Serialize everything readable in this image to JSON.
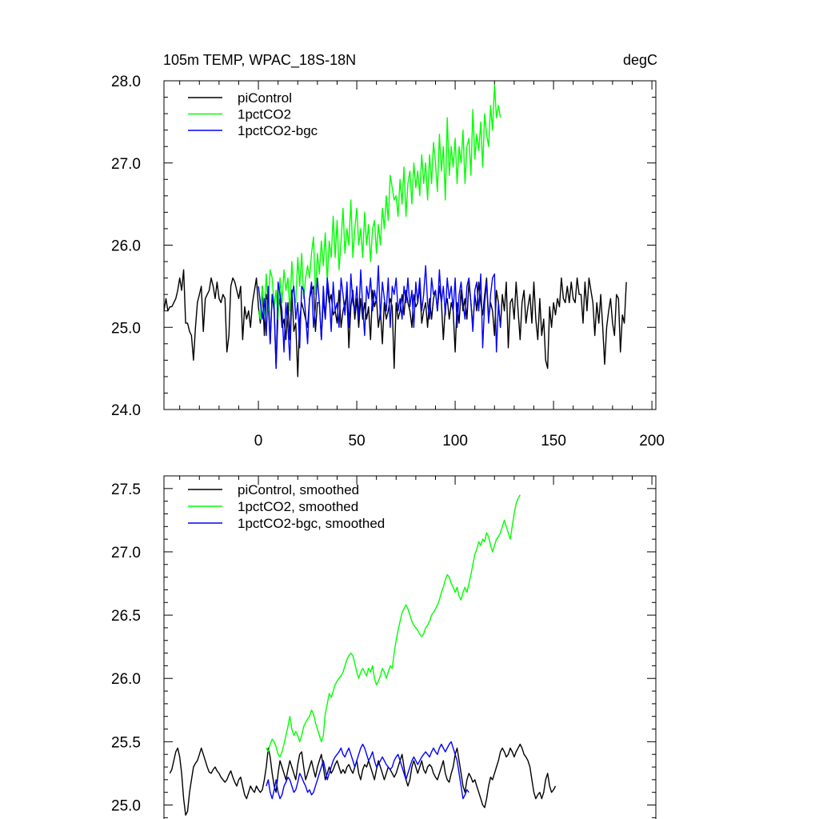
{
  "chart_data": [
    {
      "type": "line",
      "title_left": "105m TEMP, WPAC_18S-18N",
      "title_right": "degC",
      "xlim": [
        -48,
        202
      ],
      "ylim": [
        24.0,
        28.0
      ],
      "xticks": [
        0,
        50,
        100,
        150,
        200
      ],
      "xtick_labels": [
        "0",
        "50",
        "100",
        "150",
        "200"
      ],
      "yticks": [
        24.0,
        25.0,
        26.0,
        27.0,
        28.0
      ],
      "ytick_labels": [
        "24.0",
        "25.0",
        "26.0",
        "27.0",
        "28.0"
      ],
      "series": [
        {
          "name": "piControl",
          "color": "#000000",
          "x0": -48,
          "values": [
            25.2,
            25.35,
            25.2,
            25.25,
            25.25,
            25.3,
            25.35,
            25.45,
            25.6,
            25.45,
            25.7,
            25.05,
            25.05,
            24.95,
            24.9,
            24.6,
            25.0,
            25.3,
            25.4,
            25.5,
            24.95,
            25.35,
            25.4,
            25.45,
            25.6,
            25.5,
            25.35,
            25.55,
            25.35,
            25.3,
            25.4,
            25.35,
            24.7,
            24.9,
            25.5,
            25.6,
            25.55,
            25.45,
            25.35,
            25.5,
            24.85,
            25.25,
            25.1,
            25.2,
            25.0,
            25.3,
            25.45,
            25.6,
            25.25,
            25.05,
            25.5,
            24.9,
            25.4,
            25.3,
            24.8,
            25.4,
            25.2,
            24.5,
            25.2,
            25.35,
            25.0,
            25.1,
            24.85,
            25.3,
            24.85,
            25.45,
            24.95,
            25.05,
            24.4,
            25.1,
            25.3,
            25.2,
            25.1,
            25.0,
            25.35,
            25.45,
            25.5,
            24.95,
            25.3,
            25.3,
            24.85,
            25.35,
            25.1,
            25.5,
            25.3,
            25.4,
            25.15,
            25.2,
            25.05,
            25.45,
            25.0,
            25.2,
            25.3,
            25.4,
            24.75,
            25.25,
            25.45,
            25.1,
            25.35,
            25.0,
            25.35,
            25.1,
            25.3,
            25.1,
            25.25,
            24.85,
            25.45,
            25.25,
            25.35,
            25.0,
            25.2,
            24.8,
            25.3,
            25.1,
            25.2,
            25.35,
            25.25,
            24.5,
            25.3,
            25.1,
            25.2,
            25.4,
            25.15,
            25.45,
            25.3,
            25.2,
            25.0,
            25.4,
            25.25,
            25.3,
            25.5,
            25.05,
            25.2,
            25.3,
            25.0,
            25.35,
            25.1,
            25.35,
            25.45,
            25.2,
            25.5,
            25.3,
            24.85,
            25.25,
            25.35,
            25.1,
            25.3,
            25.2,
            24.7,
            25.3,
            25.05,
            25.45,
            25.2,
            25.35,
            25.1,
            25.55,
            25.3,
            25.0,
            25.4,
            25.2,
            25.55,
            25.3,
            25.15,
            25.4,
            25.6,
            25.1,
            25.3,
            25.2,
            24.9,
            25.45,
            25.3,
            25.0,
            25.4,
            25.2,
            25.55,
            24.75,
            25.3,
            25.35,
            25.1,
            25.55,
            25.2,
            24.85,
            25.3,
            25.45,
            25.05,
            25.25,
            25.4,
            25.05,
            25.55,
            25.1,
            24.85,
            25.35,
            24.9,
            25.1,
            24.6,
            24.5,
            25.25,
            25.0,
            25.3,
            25.15,
            25.35,
            25.25,
            25.6,
            25.35,
            25.3,
            25.5,
            25.3,
            25.55,
            25.35,
            25.3,
            25.6,
            25.4,
            25.4,
            25.05,
            25.55,
            25.2,
            25.6,
            25.45,
            25.3,
            24.9,
            25.3,
            25.05,
            25.4,
            25.0,
            24.55,
            25.0,
            25.2,
            25.35,
            25.05,
            24.9,
            25.4,
            25.35,
            24.7,
            25.15,
            25.05,
            25.55
          ]
        },
        {
          "name": "1pctCO2",
          "color": "#00ff00",
          "x0": 0,
          "values": [
            25.2,
            25.1,
            25.5,
            25.15,
            25.65,
            25.2,
            25.7,
            25.6,
            25.25,
            25.45,
            25.1,
            25.6,
            25.3,
            25.7,
            25.45,
            25.6,
            25.2,
            25.8,
            25.4,
            25.3,
            25.85,
            25.5,
            25.9,
            25.35,
            25.6,
            25.75,
            25.6,
            25.9,
            26.1,
            25.4,
            25.9,
            25.65,
            26.05,
            25.75,
            26.15,
            25.55,
            26.05,
            25.85,
            26.35,
            25.85,
            26.3,
            25.7,
            26.05,
            26.45,
            25.9,
            26.2,
            26.0,
            26.55,
            25.85,
            26.2,
            26.45,
            26.0,
            26.2,
            25.85,
            26.4,
            26.0,
            26.25,
            25.8,
            26.2,
            26.3,
            25.9,
            26.25,
            26.0,
            26.45,
            26.2,
            26.6,
            26.3,
            26.85,
            26.7,
            26.55,
            26.6,
            26.35,
            26.8,
            26.5,
            26.95,
            26.35,
            26.75,
            26.9,
            26.5,
            27.0,
            26.7,
            26.9,
            26.6,
            27.1,
            26.75,
            27.0,
            26.55,
            27.1,
            26.75,
            27.25,
            27.0,
            26.65,
            27.35,
            26.9,
            27.2,
            26.55,
            27.55,
            26.85,
            27.2,
            26.95,
            27.3,
            26.75,
            27.2,
            27.0,
            27.4,
            26.75,
            27.2,
            27.3,
            26.85,
            27.65,
            27.05,
            27.35,
            27.15,
            27.5,
            26.95,
            27.6,
            27.35,
            27.2,
            27.7,
            27.4,
            27.95,
            27.55,
            27.7,
            27.55
          ]
        },
        {
          "name": "1pctCO2-bgc",
          "color": "#0000ff",
          "x0": 0,
          "values": [
            25.5,
            25.3,
            25.1,
            25.35,
            24.9,
            25.5,
            24.8,
            25.4,
            25.25,
            24.5,
            25.55,
            25.4,
            25.2,
            24.7,
            25.3,
            25.0,
            24.6,
            25.4,
            25.5,
            25.1,
            25.3,
            24.75,
            25.5,
            25.45,
            25.15,
            24.8,
            25.35,
            25.55,
            25.0,
            25.25,
            25.6,
            25.3,
            24.85,
            25.5,
            25.1,
            25.6,
            25.4,
            24.95,
            25.55,
            25.2,
            25.3,
            25.0,
            25.6,
            25.4,
            25.15,
            25.55,
            25.0,
            25.65,
            25.3,
            25.2,
            25.5,
            25.1,
            25.7,
            25.25,
            24.9,
            25.5,
            25.35,
            25.6,
            25.2,
            25.45,
            25.3,
            25.75,
            25.1,
            25.55,
            25.35,
            25.2,
            25.6,
            25.0,
            25.5,
            25.4,
            25.6,
            25.2,
            25.35,
            25.1,
            25.5,
            25.3,
            25.6,
            25.25,
            25.45,
            25.0,
            25.55,
            25.3,
            25.6,
            25.2,
            25.4,
            25.75,
            25.3,
            25.1,
            25.6,
            25.4,
            25.45,
            25.2,
            25.7,
            25.3,
            25.5,
            25.15,
            25.6,
            25.35,
            25.5,
            25.2,
            25.6,
            25.0,
            25.4,
            25.55,
            25.3,
            25.1,
            25.5,
            25.6,
            25.3,
            24.95,
            25.45,
            25.55,
            25.2,
            25.65,
            24.75,
            25.3,
            25.55,
            25.05,
            25.4,
            25.6,
            25.65,
            24.7,
            25.3,
            25.0
          ]
        }
      ]
    },
    {
      "type": "line",
      "xlim": [
        -48,
        202
      ],
      "ylim": [
        24.82,
        27.6
      ],
      "yticks": [
        25.0,
        25.5,
        26.0,
        26.5,
        27.0,
        27.5
      ],
      "ytick_labels": [
        "25.0",
        "25.5",
        "26.0",
        "26.5",
        "27.0",
        "27.5"
      ],
      "series": [
        {
          "name": "piControl, smoothed",
          "color": "#000000",
          "x0": -45,
          "values": [
            25.25,
            25.28,
            25.35,
            25.42,
            25.45,
            25.38,
            25.25,
            25.05,
            24.92,
            24.95,
            25.1,
            25.2,
            25.3,
            25.33,
            25.35,
            25.4,
            25.45,
            25.4,
            25.35,
            25.3,
            25.26,
            25.25,
            25.28,
            25.3,
            25.27,
            25.25,
            25.22,
            25.2,
            25.18,
            25.2,
            25.24,
            25.27,
            25.22,
            25.18,
            25.15,
            25.2,
            25.22,
            25.15,
            25.08,
            25.05,
            25.1,
            25.15,
            25.12,
            25.1,
            25.15,
            25.12,
            25.1,
            25.12,
            25.2,
            25.3,
            25.45,
            25.38,
            25.25,
            25.15,
            25.1,
            25.25,
            25.35,
            25.3,
            25.25,
            25.2,
            25.28,
            25.35,
            25.3,
            25.25,
            25.2,
            25.32,
            25.4,
            25.42,
            25.3,
            25.2,
            25.25,
            25.3,
            25.35,
            25.28,
            25.22,
            25.3,
            25.35,
            25.4,
            25.3,
            25.2,
            25.25,
            25.3,
            25.25,
            25.28,
            25.32,
            25.35,
            25.3,
            25.25,
            25.28,
            25.25,
            25.3,
            25.32,
            25.28,
            25.25,
            25.3,
            25.35,
            25.25,
            25.2,
            25.28,
            25.32,
            25.3,
            25.35,
            25.3,
            25.25,
            25.2,
            25.28,
            25.35,
            25.3,
            25.25,
            25.2,
            25.25,
            25.3,
            25.28,
            25.25,
            25.22,
            25.25,
            25.3,
            25.35,
            25.4,
            25.3,
            25.2,
            25.15,
            25.2,
            25.3,
            25.35,
            25.3,
            25.25,
            25.3,
            25.35,
            25.28,
            25.25,
            25.3,
            25.32,
            25.3,
            25.25,
            25.22,
            25.2,
            25.25,
            25.3,
            25.35,
            25.25,
            25.2,
            25.18,
            25.25,
            25.3,
            25.4,
            25.45,
            25.35,
            25.25,
            25.15,
            25.1,
            25.2,
            25.25,
            25.22,
            25.18,
            25.2,
            25.15,
            25.1,
            25.05,
            25.0,
            24.98,
            25.05,
            25.15,
            25.22,
            25.2,
            25.25,
            25.3,
            25.35,
            25.42,
            25.45,
            25.42,
            25.38,
            25.4,
            25.45,
            25.42,
            25.38,
            25.42,
            25.45,
            25.48,
            25.45,
            25.4,
            25.38,
            25.35,
            25.3,
            25.2,
            25.1,
            25.05,
            25.08,
            25.1,
            25.05,
            25.1,
            25.2,
            25.25,
            25.15,
            25.1,
            25.12,
            25.15
          ]
        },
        {
          "name": "1pctCO2, smoothed",
          "color": "#00ff00",
          "x0": 4,
          "values": [
            25.45,
            25.42,
            25.48,
            25.52,
            25.5,
            25.46,
            25.4,
            25.38,
            25.42,
            25.48,
            25.55,
            25.62,
            25.7,
            25.6,
            25.55,
            25.58,
            25.55,
            25.5,
            25.55,
            25.62,
            25.65,
            25.68,
            25.7,
            25.75,
            25.72,
            25.65,
            25.6,
            25.55,
            25.5,
            25.55,
            25.72,
            25.8,
            25.88,
            25.85,
            25.9,
            25.95,
            25.98,
            26.0,
            26.02,
            26.05,
            26.1,
            26.15,
            26.18,
            26.2,
            26.18,
            26.12,
            26.05,
            26.0,
            26.05,
            26.08,
            26.05,
            26.02,
            26.08,
            26.05,
            26.1,
            26.0,
            25.95,
            25.98,
            26.02,
            26.08,
            26.05,
            26.0,
            26.05,
            26.1,
            26.08,
            26.2,
            26.3,
            26.38,
            26.45,
            26.52,
            26.55,
            26.58,
            26.55,
            26.5,
            26.45,
            26.42,
            26.4,
            26.38,
            26.35,
            26.33,
            26.35,
            26.4,
            26.42,
            26.45,
            26.5,
            26.52,
            26.55,
            26.58,
            26.62,
            26.68,
            26.72,
            26.78,
            26.82,
            26.8,
            26.75,
            26.72,
            26.68,
            26.72,
            26.65,
            26.62,
            26.68,
            26.72,
            26.68,
            26.75,
            26.82,
            26.9,
            26.98,
            27.02,
            27.08,
            27.05,
            27.1,
            27.08,
            27.15,
            27.12,
            27.05,
            27.0,
            27.05,
            27.1,
            27.12,
            27.15,
            27.2,
            27.25,
            27.2,
            27.15,
            27.1,
            27.2,
            27.3,
            27.38,
            27.42,
            27.45
          ]
        },
        {
          "name": "1pctCO2-bgc, smoothed",
          "color": "#0000ff",
          "x0": 4,
          "values": [
            25.15,
            25.2,
            25.1,
            25.05,
            25.12,
            25.2,
            25.1,
            25.05,
            25.08,
            25.15,
            25.18,
            25.22,
            25.2,
            25.15,
            25.1,
            25.12,
            25.18,
            25.25,
            25.22,
            25.18,
            25.15,
            25.1,
            25.12,
            25.08,
            25.1,
            25.15,
            25.2,
            25.25,
            25.3,
            25.35,
            25.28,
            25.2,
            25.25,
            25.3,
            25.35,
            25.38,
            25.4,
            25.42,
            25.45,
            25.4,
            25.38,
            25.42,
            25.45,
            25.4,
            25.35,
            25.3,
            25.35,
            25.4,
            25.45,
            25.48,
            25.45,
            25.4,
            25.35,
            25.38,
            25.42,
            25.35,
            25.3,
            25.32,
            25.35,
            25.38,
            25.35,
            25.32,
            25.3,
            25.28,
            25.3,
            25.35,
            25.38,
            25.4,
            25.35,
            25.3,
            25.25,
            25.2,
            25.25,
            25.3,
            25.35,
            25.38,
            25.35,
            25.32,
            25.35,
            25.38,
            25.4,
            25.42,
            25.4,
            25.38,
            25.42,
            25.45,
            25.42,
            25.4,
            25.45,
            25.48,
            25.45,
            25.42,
            25.45,
            25.48,
            25.5,
            25.45,
            25.4,
            25.35,
            25.25,
            25.15,
            25.05,
            25.08,
            25.12,
            25.1
          ]
        }
      ]
    }
  ]
}
